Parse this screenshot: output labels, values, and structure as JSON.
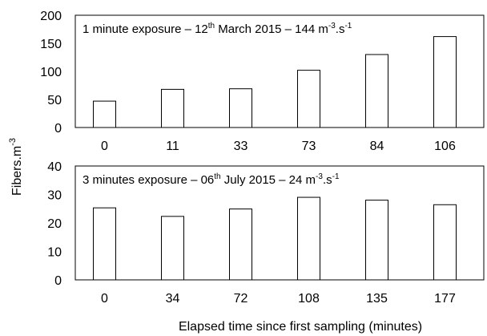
{
  "chart_data": [
    {
      "type": "bar",
      "title": "1 minute exposure – 12",
      "title_date_suffix": "th",
      "title_rest": " March 2015 – 144 m",
      "title_unit_exp": "-3",
      "title_unit_mid": ".s",
      "title_unit_exp2": "-1",
      "categories": [
        "0",
        "11",
        "33",
        "73",
        "84",
        "106"
      ],
      "values": [
        47,
        68,
        69,
        102,
        130,
        162
      ],
      "ylim": [
        0,
        200
      ],
      "yticks": [
        "0",
        "50",
        "100",
        "150",
        "200"
      ],
      "ytick_values": [
        0,
        50,
        100,
        150,
        200
      ]
    },
    {
      "type": "bar",
      "title": "3 minutes exposure – 06",
      "title_date_suffix": "th",
      "title_rest": " July 2015 – 24 m",
      "title_unit_exp": "-3",
      "title_unit_mid": ".s",
      "title_unit_exp2": "-1",
      "categories": [
        "0",
        "34",
        "72",
        "108",
        "135",
        "177"
      ],
      "values": [
        25.3,
        22.3,
        24.9,
        29,
        28,
        26.4
      ],
      "ylim": [
        0,
        40
      ],
      "yticks": [
        "0",
        "10",
        "20",
        "30",
        "40"
      ],
      "ytick_values": [
        0,
        10,
        20,
        30,
        40
      ]
    }
  ],
  "ylabel": "Fibers.m",
  "ylabel_exp": "-3",
  "xlabel": "Elapsed time since first sampling (minutes)",
  "colors": {
    "bar_fill": "#ffffff",
    "bar_stroke": "#000000",
    "frame": "#000000"
  }
}
